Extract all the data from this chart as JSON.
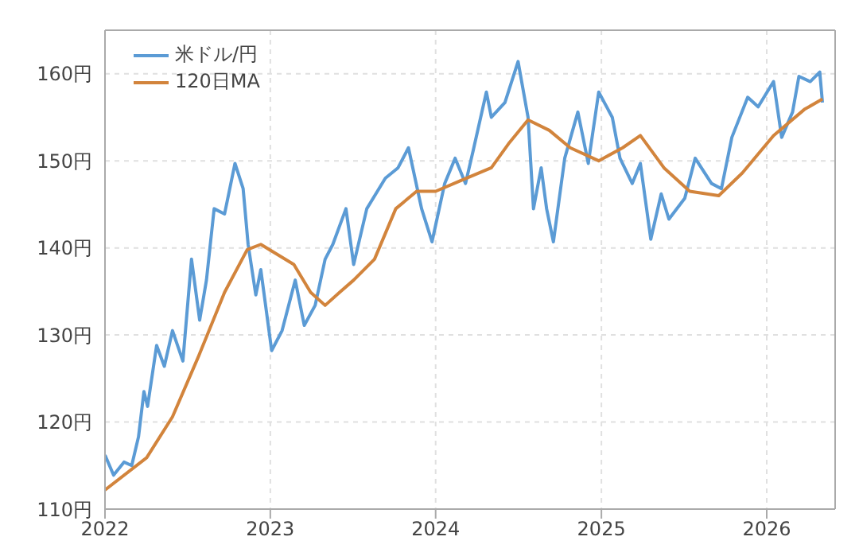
{
  "chart_data": {
    "type": "line",
    "xlim": [
      "2022-01-01",
      "2026-06-01"
    ],
    "xticks": [
      "2022",
      "2023",
      "2024",
      "2025",
      "2026"
    ],
    "ylim": [
      110,
      165
    ],
    "yticks": [
      {
        "value": 110,
        "label": "110円"
      },
      {
        "value": 120,
        "label": "120円"
      },
      {
        "value": 130,
        "label": "130円"
      },
      {
        "value": 140,
        "label": "140円"
      },
      {
        "value": 150,
        "label": "150円"
      },
      {
        "value": 160,
        "label": "160円"
      }
    ],
    "grid": true,
    "legend": "top left",
    "marker": "none",
    "line_style": "solid",
    "series": [
      {
        "name": "米ドル/円",
        "color": "#5b9bd5",
        "x": [
          "2022-01-01",
          "2022-01-20",
          "2022-02-12",
          "2022-03-01",
          "2022-03-16",
          "2022-03-28",
          "2022-04-05",
          "2022-04-25",
          "2022-05-12",
          "2022-05-30",
          "2022-06-22",
          "2022-07-11",
          "2022-07-29",
          "2022-08-13",
          "2022-08-30",
          "2022-09-22",
          "2022-10-15",
          "2022-11-02",
          "2022-11-13",
          "2022-11-30",
          "2022-12-11",
          "2023-01-04",
          "2023-01-27",
          "2023-02-25",
          "2023-03-17",
          "2023-04-10",
          "2023-05-02",
          "2023-05-19",
          "2023-06-17",
          "2023-07-04",
          "2023-08-02",
          "2023-09-12",
          "2023-10-10",
          "2023-11-02",
          "2023-12-01",
          "2023-12-24",
          "2024-01-21",
          "2024-02-13",
          "2024-03-07",
          "2024-03-24",
          "2024-04-22",
          "2024-05-03",
          "2024-06-02",
          "2024-07-01",
          "2024-07-23",
          "2024-08-04",
          "2024-08-21",
          "2024-09-02",
          "2024-09-17",
          "2024-10-12",
          "2024-11-10",
          "2024-12-03",
          "2024-12-26",
          "2025-01-25",
          "2025-02-11",
          "2025-03-10",
          "2025-03-28",
          "2025-04-20",
          "2025-05-13",
          "2025-05-30",
          "2025-07-04",
          "2025-07-27",
          "2025-09-01",
          "2025-09-23",
          "2025-10-16",
          "2025-11-20",
          "2025-12-13",
          "2026-01-16",
          "2026-02-03",
          "2026-02-27",
          "2026-03-13",
          "2026-04-07",
          "2026-04-28",
          "2026-05-04"
        ],
        "values": [
          116.2,
          113.9,
          115.4,
          115,
          118.3,
          123.5,
          121.8,
          128.8,
          126.4,
          130.5,
          127,
          138.7,
          131.7,
          136.3,
          144.5,
          143.9,
          149.7,
          146.8,
          140.4,
          134.6,
          137.5,
          128.2,
          130.5,
          136.3,
          131.1,
          133.4,
          138.7,
          140.4,
          144.5,
          138.1,
          144.5,
          148,
          149.2,
          151.5,
          144.5,
          140.7,
          147.4,
          150.3,
          147.4,
          151.2,
          157.9,
          155,
          156.7,
          161.4,
          155,
          144.5,
          149.2,
          144.5,
          140.7,
          150.3,
          155.6,
          149.7,
          157.9,
          155,
          150.3,
          147.4,
          149.7,
          141,
          146.2,
          143.3,
          145.7,
          150.3,
          147.4,
          146.8,
          152.7,
          157.3,
          156.2,
          159.1,
          152.7,
          155.6,
          159.7,
          159.1,
          160.2,
          156.7
        ]
      },
      {
        "name": "120日MA",
        "color": "#d2843c",
        "x": [
          "2022-01-01",
          "2022-04-03",
          "2022-05-30",
          "2022-07-27",
          "2022-09-22",
          "2022-11-11",
          "2022-12-11",
          "2023-02-22",
          "2023-03-31",
          "2023-05-02",
          "2023-06-03",
          "2023-07-04",
          "2023-08-19",
          "2023-10-05",
          "2023-11-20",
          "2024-01-01",
          "2024-02-24",
          "2024-05-03",
          "2024-06-12",
          "2024-07-23",
          "2024-09-08",
          "2024-10-24",
          "2024-12-26",
          "2025-02-17",
          "2025-03-28",
          "2025-05-19",
          "2025-07-15",
          "2025-09-17",
          "2025-11-08",
          "2026-01-16",
          "2026-03-25",
          "2026-05-04"
        ],
        "values": [
          112.2,
          115.9,
          120.6,
          127.6,
          134.9,
          139.8,
          140.4,
          138.1,
          134.9,
          133.4,
          134.9,
          136.3,
          138.7,
          144.5,
          146.5,
          146.5,
          147.7,
          149.2,
          152.1,
          154.7,
          153.5,
          151.5,
          150,
          151.5,
          152.9,
          149.2,
          146.5,
          146,
          148.6,
          152.9,
          155.9,
          157.1
        ]
      }
    ]
  }
}
